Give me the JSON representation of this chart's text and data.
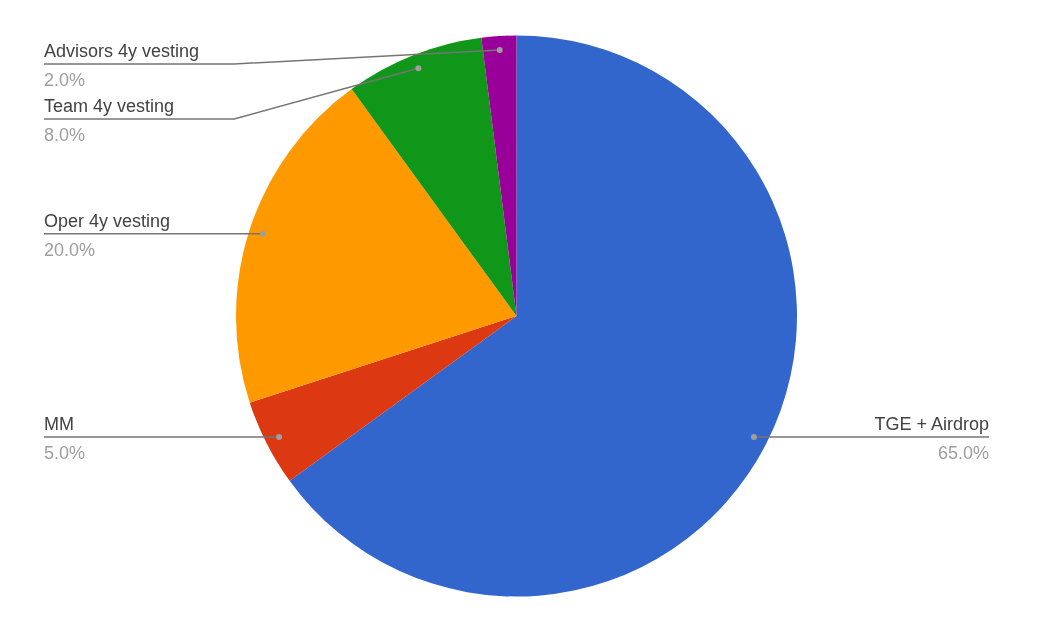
{
  "chart_data": {
    "type": "pie",
    "categories": [
      "TGE + Airdrop",
      "MM",
      "Oper 4y vesting",
      "Team 4y vesting",
      "Advisors 4y vesting"
    ],
    "values": [
      65,
      5,
      20,
      8,
      2
    ],
    "colors": [
      "#3366cc",
      "#dc3912",
      "#ff9900",
      "#109618",
      "#990099"
    ],
    "value_labels": [
      "65.0%",
      "5.0%",
      "20.0%",
      "8.0%",
      "2.0%"
    ],
    "legend": false
  }
}
